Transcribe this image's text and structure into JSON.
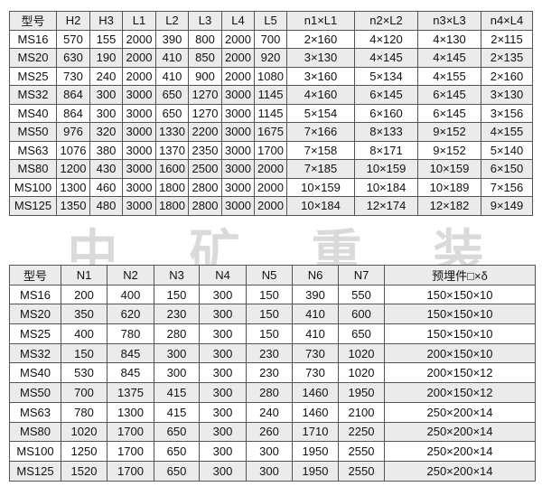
{
  "table1": {
    "headers": [
      "型号",
      "H2",
      "H3",
      "L1",
      "L2",
      "L3",
      "L4",
      "L5",
      "n1×L1",
      "n2×L2",
      "n3×L3",
      "n4×L4"
    ],
    "rows": [
      [
        "MS16",
        "570",
        "155",
        "2000",
        "390",
        "800",
        "2000",
        "700",
        "2×160",
        "4×120",
        "4×130",
        "2×115"
      ],
      [
        "MS20",
        "630",
        "190",
        "2000",
        "410",
        "850",
        "2000",
        "920",
        "3×130",
        "4×145",
        "4×145",
        "2×135"
      ],
      [
        "MS25",
        "730",
        "240",
        "2000",
        "410",
        "900",
        "2000",
        "1080",
        "3×160",
        "5×134",
        "4×155",
        "2×160"
      ],
      [
        "MS32",
        "864",
        "300",
        "3000",
        "650",
        "1270",
        "3000",
        "1145",
        "4×160",
        "6×145",
        "6×145",
        "3×130"
      ],
      [
        "MS40",
        "864",
        "300",
        "3000",
        "650",
        "1270",
        "3000",
        "1145",
        "5×154",
        "6×160",
        "6×145",
        "3×156"
      ],
      [
        "MS50",
        "976",
        "320",
        "3000",
        "1330",
        "2200",
        "3000",
        "1675",
        "7×166",
        "8×133",
        "9×152",
        "4×155"
      ],
      [
        "MS63",
        "1076",
        "380",
        "3000",
        "1370",
        "2350",
        "3000",
        "1700",
        "7×158",
        "8×171",
        "9×152",
        "5×140"
      ],
      [
        "MS80",
        "1200",
        "430",
        "3000",
        "1600",
        "2500",
        "3000",
        "2000",
        "7×185",
        "10×159",
        "10×159",
        "6×150"
      ],
      [
        "MS100",
        "1300",
        "460",
        "3000",
        "1800",
        "2800",
        "3000",
        "2000",
        "10×159",
        "10×184",
        "10×189",
        "7×156"
      ],
      [
        "MS125",
        "1350",
        "480",
        "3000",
        "1800",
        "2800",
        "3000",
        "2000",
        "10×184",
        "12×174",
        "12×182",
        "9×149"
      ]
    ]
  },
  "table2": {
    "headers": [
      "型号",
      "N1",
      "N2",
      "N3",
      "N4",
      "N5",
      "N6",
      "N7",
      "预埋件□×δ"
    ],
    "rows": [
      [
        "MS16",
        "200",
        "400",
        "150",
        "300",
        "150",
        "390",
        "550",
        "150×150×10"
      ],
      [
        "MS20",
        "350",
        "620",
        "230",
        "300",
        "150",
        "410",
        "600",
        "150×150×10"
      ],
      [
        "MS25",
        "400",
        "780",
        "280",
        "300",
        "150",
        "410",
        "650",
        "150×150×10"
      ],
      [
        "MS32",
        "150",
        "845",
        "300",
        "300",
        "230",
        "730",
        "1020",
        "200×150×10"
      ],
      [
        "MS40",
        "530",
        "845",
        "300",
        "300",
        "230",
        "730",
        "1020",
        "200×150×12"
      ],
      [
        "MS50",
        "700",
        "1375",
        "415",
        "300",
        "280",
        "1460",
        "1950",
        "200×150×12"
      ],
      [
        "MS63",
        "780",
        "1300",
        "415",
        "300",
        "240",
        "1460",
        "2100",
        "250×200×14"
      ],
      [
        "MS80",
        "1020",
        "1700",
        "650",
        "300",
        "260",
        "1710",
        "2250",
        "250×200×14"
      ],
      [
        "MS100",
        "1250",
        "1700",
        "650",
        "300",
        "300",
        "1950",
        "2550",
        "250×200×14"
      ],
      [
        "MS125",
        "1520",
        "1700",
        "650",
        "300",
        "300",
        "1950",
        "2550",
        "250×200×14"
      ]
    ]
  },
  "watermark": [
    "中",
    "矿",
    "重",
    "装"
  ],
  "colors": {
    "header_bg": "#ebebeb",
    "stripe_bg": "#ebebeb",
    "border": "#555555"
  }
}
